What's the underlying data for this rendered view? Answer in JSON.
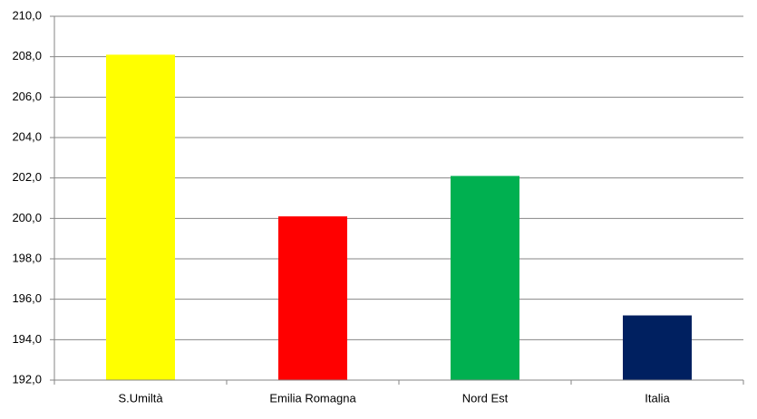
{
  "chart_data": {
    "type": "bar",
    "categories": [
      "S.Umiltà",
      "Emilia Romagna",
      "Nord Est",
      "Italia"
    ],
    "values": [
      208.1,
      200.1,
      202.1,
      195.2
    ],
    "colors": [
      "#ffff00",
      "#ff0000",
      "#00b050",
      "#002060"
    ],
    "ylim": [
      192,
      210
    ],
    "yticks": [
      {
        "value": 192,
        "label": "192,0"
      },
      {
        "value": 194,
        "label": "194,0"
      },
      {
        "value": 196,
        "label": "196,0"
      },
      {
        "value": 198,
        "label": "198,0"
      },
      {
        "value": 200,
        "label": "200,0"
      },
      {
        "value": 202,
        "label": "202,0"
      },
      {
        "value": 204,
        "label": "204,0"
      },
      {
        "value": 206,
        "label": "206,0"
      },
      {
        "value": 208,
        "label": "208,0"
      },
      {
        "value": 210,
        "label": "210,0"
      }
    ],
    "grid": true
  }
}
